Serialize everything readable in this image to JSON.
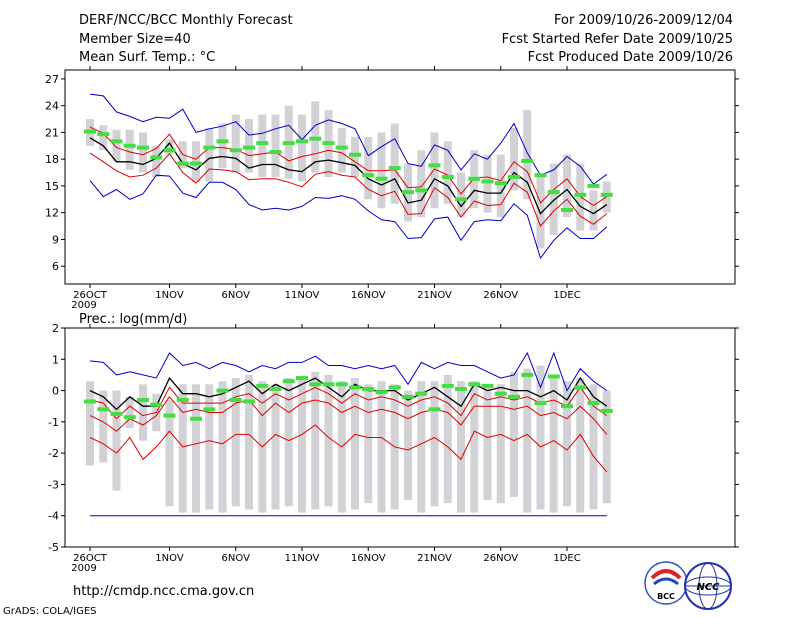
{
  "header": {
    "title": "DERF/NCC/BCC Monthly Forecast",
    "member_size": "Member Size=40",
    "variable": "Mean Surf. Temp.: °C",
    "period": "For 2009/10/26-2009/12/04",
    "started": "Fcst Started Refer Date 2009/10/25",
    "produced": "Fcst Produced Date 2009/10/26"
  },
  "footer": {
    "url": "http://cmdp.ncc.cma.gov.cn",
    "credit": "GrADS: COLA/IGES",
    "logo_bcc": "BCC",
    "logo_ncc": "NCC"
  },
  "colors": {
    "mean": "#000000",
    "inner": "#e00000",
    "outer": "#0000cc",
    "box": "#d2d2d6",
    "median": "#44dd44"
  },
  "chart_data": [
    {
      "type": "line",
      "title": "Mean Surf. Temp.: °C",
      "x_days": 40,
      "xticks": [
        {
          "day": 0,
          "label": "26OCT",
          "sub": "2009"
        },
        {
          "day": 6,
          "label": "1NOV"
        },
        {
          "day": 11,
          "label": "6NOV"
        },
        {
          "day": 16,
          "label": "11NOV"
        },
        {
          "day": 21,
          "label": "16NOV"
        },
        {
          "day": 26,
          "label": "21NOV"
        },
        {
          "day": 31,
          "label": "26NOV"
        },
        {
          "day": 36,
          "label": "1DEC"
        }
      ],
      "ylim": [
        4,
        28
      ],
      "yticks": [
        6,
        9,
        12,
        15,
        18,
        21,
        24,
        27
      ],
      "series": [
        {
          "name": "max",
          "role": "outer",
          "values": [
            25.3,
            25.1,
            23.3,
            22.8,
            22.2,
            22.7,
            22.6,
            23.6,
            21.0,
            21.4,
            21.7,
            22.2,
            20.7,
            20.9,
            21.4,
            21.8,
            20.2,
            21.8,
            22.4,
            22.0,
            21.4,
            18.4,
            19.4,
            20.3,
            17.5,
            17.2,
            19.6,
            19.0,
            16.8,
            18.6,
            18.0,
            19.8,
            22.0,
            18.7,
            16.2,
            16.8,
            18.3,
            17.2,
            15.2,
            16.3
          ]
        },
        {
          "name": "upper",
          "role": "inner",
          "values": [
            21.6,
            20.9,
            19.3,
            18.8,
            18.5,
            19.2,
            20.8,
            18.5,
            18.0,
            19.3,
            19.3,
            19.1,
            18.4,
            18.6,
            18.8,
            17.8,
            18.3,
            18.6,
            19.0,
            18.7,
            17.7,
            16.7,
            16.7,
            16.8,
            14.8,
            14.9,
            16.9,
            16.2,
            14.1,
            15.9,
            16.0,
            15.6,
            17.7,
            16.6,
            13.1,
            14.6,
            15.8,
            13.8,
            12.8,
            13.8
          ]
        },
        {
          "name": "mean",
          "role": "mean",
          "values": [
            20.4,
            19.5,
            17.7,
            17.7,
            17.4,
            18.1,
            19.8,
            17.5,
            16.8,
            18.1,
            18.3,
            18.1,
            17.0,
            17.4,
            17.4,
            16.8,
            16.6,
            17.7,
            17.9,
            17.6,
            17.3,
            15.8,
            15.1,
            15.8,
            13.1,
            13.4,
            15.8,
            15.0,
            12.7,
            14.5,
            14.2,
            14.2,
            16.5,
            15.4,
            11.9,
            13.4,
            14.6,
            12.7,
            11.9,
            12.9
          ]
        },
        {
          "name": "lower",
          "role": "inner",
          "values": [
            18.7,
            17.7,
            16.7,
            16.0,
            16.2,
            17.0,
            18.6,
            16.5,
            15.3,
            16.9,
            16.8,
            16.6,
            15.7,
            15.8,
            15.8,
            15.4,
            14.9,
            16.3,
            16.6,
            16.2,
            16.0,
            14.6,
            13.9,
            14.4,
            11.8,
            11.9,
            14.8,
            13.7,
            11.5,
            13.3,
            12.8,
            12.9,
            15.3,
            14.3,
            10.5,
            12.2,
            13.5,
            11.6,
            10.7,
            11.9
          ]
        },
        {
          "name": "min",
          "role": "outer",
          "values": [
            15.6,
            13.8,
            14.6,
            13.5,
            14.1,
            16.2,
            16.1,
            14.2,
            13.7,
            15.4,
            15.4,
            14.6,
            12.9,
            12.3,
            12.5,
            12.3,
            12.7,
            13.7,
            13.6,
            13.9,
            13.5,
            12.2,
            11.2,
            11.0,
            9.1,
            9.2,
            11.3,
            11.5,
            8.9,
            11.0,
            11.2,
            11.1,
            13.0,
            11.7,
            6.9,
            8.9,
            10.3,
            9.1,
            9.1,
            10.4
          ]
        }
      ],
      "boxes": {
        "low": [
          19.5,
          19.0,
          17.8,
          16.8,
          16.5,
          16.0,
          18.5,
          17.0,
          15.5,
          15.5,
          17.0,
          16.5,
          16.5,
          16.0,
          16.0,
          15.8,
          15.5,
          16.5,
          16.0,
          16.5,
          16.0,
          13.5,
          12.5,
          13.0,
          11.0,
          11.5,
          12.5,
          13.0,
          11.5,
          12.5,
          12.0,
          11.5,
          14.5,
          13.5,
          8.0,
          9.5,
          11.5,
          10.0,
          10.0,
          12.0
        ],
        "high": [
          22.5,
          21.8,
          21.3,
          21.3,
          21.0,
          19.5,
          20.2,
          20.0,
          20.0,
          21.5,
          22.0,
          23.0,
          22.5,
          23.0,
          23.0,
          24.0,
          23.0,
          24.5,
          23.5,
          21.5,
          20.5,
          20.5,
          21.0,
          22.0,
          17.5,
          19.0,
          21.0,
          20.0,
          16.5,
          19.0,
          18.5,
          18.5,
          21.5,
          23.5,
          16.0,
          17.5,
          18.5,
          17.5,
          14.5,
          15.5
        ],
        "median": [
          21.1,
          20.8,
          20.0,
          19.5,
          19.3,
          18.2,
          19.0,
          17.5,
          17.5,
          19.3,
          20.0,
          19.0,
          19.3,
          19.8,
          18.8,
          19.8,
          20.0,
          20.3,
          19.8,
          19.3,
          18.5,
          16.2,
          15.8,
          17.0,
          14.3,
          14.5,
          17.3,
          16.0,
          13.5,
          15.8,
          15.5,
          15.3,
          16.0,
          17.8,
          16.2,
          14.3,
          12.3,
          14.0,
          15.0,
          14.0
        ]
      }
    },
    {
      "type": "line",
      "title": "Prec.: log(mm/d)",
      "x_days": 40,
      "xticks": [
        {
          "day": 0,
          "label": "26OCT",
          "sub": "2009"
        },
        {
          "day": 6,
          "label": "1NOV"
        },
        {
          "day": 11,
          "label": "6NOV"
        },
        {
          "day": 16,
          "label": "11NOV"
        },
        {
          "day": 21,
          "label": "16NOV"
        },
        {
          "day": 26,
          "label": "21NOV"
        },
        {
          "day": 31,
          "label": "26NOV"
        },
        {
          "day": 36,
          "label": "1DEC"
        }
      ],
      "ylim": [
        -5,
        2
      ],
      "yticks": [
        -5,
        -4,
        -3,
        -2,
        -1,
        0,
        1,
        2
      ],
      "floor": -4,
      "series": [
        {
          "name": "max",
          "role": "outer",
          "values": [
            0.95,
            0.9,
            0.5,
            0.6,
            0.5,
            0.4,
            1.2,
            0.8,
            0.9,
            0.7,
            0.9,
            0.8,
            0.6,
            0.8,
            0.7,
            0.9,
            0.9,
            1.1,
            0.8,
            0.8,
            0.7,
            0.8,
            0.7,
            0.8,
            0.2,
            0.9,
            0.7,
            0.9,
            0.8,
            0.8,
            0.6,
            0.4,
            0.5,
            1.2,
            0.1,
            1.2,
            0.0,
            0.7,
            0.3,
            0.0
          ]
        },
        {
          "name": "mean",
          "role": "mean",
          "values": [
            0.0,
            -0.2,
            -0.6,
            -0.2,
            -0.5,
            -0.5,
            0.4,
            -0.1,
            -0.1,
            -0.2,
            -0.1,
            0.1,
            0.3,
            -0.1,
            0.2,
            0.0,
            0.2,
            0.4,
            0.1,
            -0.2,
            0.2,
            0.0,
            0.0,
            0.0,
            -0.3,
            -0.1,
            0.1,
            -0.2,
            -0.5,
            0.2,
            0.0,
            0.1,
            0.0,
            0.0,
            -0.2,
            0.0,
            -0.3,
            0.4,
            -0.2,
            -0.5
          ]
        },
        {
          "name": "upper",
          "role": "inner",
          "values": [
            -0.3,
            -0.4,
            -0.9,
            -0.5,
            -0.8,
            -0.7,
            0.1,
            -0.4,
            -0.4,
            -0.4,
            -0.4,
            -0.2,
            -0.1,
            -0.4,
            -0.1,
            -0.3,
            -0.1,
            0.1,
            -0.1,
            -0.4,
            -0.1,
            -0.3,
            -0.2,
            -0.3,
            -0.5,
            -0.3,
            -0.2,
            -0.4,
            -0.8,
            -0.1,
            -0.3,
            -0.2,
            -0.3,
            -0.2,
            -0.4,
            -0.3,
            -0.5,
            0.1,
            -0.5,
            -0.8
          ]
        },
        {
          "name": "lower",
          "role": "inner",
          "values": [
            -0.8,
            -1.0,
            -1.3,
            -0.9,
            -1.1,
            -0.8,
            -0.2,
            -0.7,
            -0.6,
            -0.7,
            -0.7,
            -0.4,
            -0.3,
            -0.8,
            -0.4,
            -0.7,
            -0.4,
            -0.3,
            -0.4,
            -0.7,
            -0.5,
            -0.7,
            -0.6,
            -0.7,
            -0.9,
            -0.7,
            -0.6,
            -0.7,
            -1.1,
            -0.5,
            -0.5,
            -0.5,
            -0.6,
            -0.5,
            -0.8,
            -0.7,
            -0.9,
            -0.5,
            -0.9,
            -1.4
          ]
        },
        {
          "name": "min",
          "role": "inner",
          "values": [
            -1.5,
            -1.7,
            -2.0,
            -1.5,
            -2.2,
            -1.8,
            -1.3,
            -1.8,
            -1.7,
            -1.6,
            -1.7,
            -1.4,
            -1.4,
            -1.8,
            -1.4,
            -1.6,
            -1.4,
            -1.1,
            -1.5,
            -1.8,
            -1.4,
            -1.5,
            -1.5,
            -1.8,
            -1.9,
            -1.7,
            -1.5,
            -1.8,
            -2.2,
            -1.3,
            -1.5,
            -1.4,
            -1.6,
            -1.4,
            -1.8,
            -1.6,
            -1.9,
            -1.4,
            -2.1,
            -2.6
          ]
        }
      ],
      "boxes": {
        "low": [
          -2.4,
          -2.3,
          -3.2,
          -1.2,
          -1.6,
          -1.3,
          -3.7,
          -3.9,
          -3.9,
          -3.8,
          -3.9,
          -3.7,
          -3.8,
          -3.9,
          -3.8,
          -3.7,
          -3.9,
          -3.8,
          -3.7,
          -3.9,
          -3.8,
          -3.6,
          -3.9,
          -3.8,
          -3.5,
          -3.9,
          -3.7,
          -3.6,
          -3.9,
          -3.9,
          -3.5,
          -3.6,
          -3.4,
          -3.9,
          -3.8,
          -3.9,
          -3.7,
          -3.9,
          -3.8,
          -3.6
        ],
        "high": [
          0.3,
          0.0,
          0.0,
          -0.2,
          0.2,
          -0.1,
          -0.3,
          0.2,
          0.2,
          0.2,
          0.3,
          0.4,
          0.5,
          0.3,
          0.2,
          0.4,
          0.4,
          0.6,
          0.5,
          0.3,
          0.4,
          0.2,
          0.3,
          0.2,
          0.0,
          0.3,
          0.3,
          0.5,
          0.3,
          0.3,
          0.2,
          0.2,
          0.6,
          0.7,
          0.8,
          0.5,
          0.3,
          0.4,
          0.2,
          0.0
        ],
        "median": [
          -0.35,
          -0.6,
          -0.75,
          -0.85,
          -0.3,
          -0.45,
          -0.8,
          -0.3,
          -0.9,
          -0.6,
          0.0,
          -0.3,
          -0.35,
          0.15,
          0.05,
          0.3,
          0.4,
          0.2,
          0.2,
          0.2,
          0.1,
          0.05,
          -0.05,
          0.1,
          -0.2,
          -0.1,
          -0.6,
          0.15,
          0.05,
          0.2,
          0.15,
          -0.1,
          -0.2,
          0.5,
          -0.4,
          0.45,
          -0.5,
          0.1,
          -0.4,
          -0.65
        ]
      }
    }
  ]
}
